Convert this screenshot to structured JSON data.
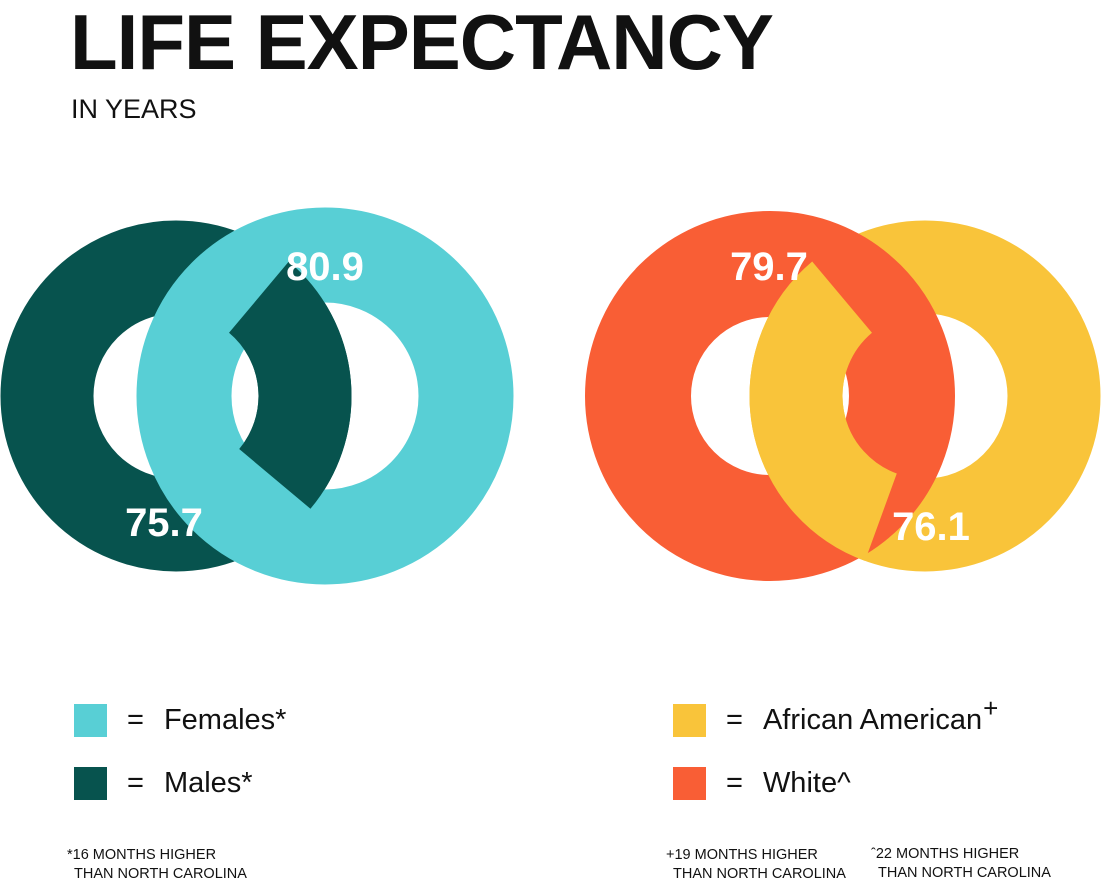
{
  "title": "LIFE EXPECTANCY",
  "subtitle": "IN YEARS",
  "gender": {
    "females": {
      "value": "80.9",
      "label": "Females*",
      "color": "#58CFD5"
    },
    "males": {
      "value": "75.7",
      "label": "Males*",
      "color": "#07534E"
    },
    "note_line1": "*16 MONTHS HIGHER",
    "note_line2": "THAN NORTH CAROLINA"
  },
  "race": {
    "african_american": {
      "value": "76.1",
      "label": "African American",
      "mark": "+",
      "color": "#F9C43A"
    },
    "white": {
      "value": "79.7",
      "label": "White^",
      "color": "#F95E35"
    },
    "note_a_line1": "+19 MONTHS HIGHER",
    "note_a_line2": "THAN NORTH CAROLINA",
    "note_b_line1": "ˆ22 MONTHS HIGHER",
    "note_b_line2": "THAN NORTH CAROLINA"
  },
  "legend_equals": "="
}
